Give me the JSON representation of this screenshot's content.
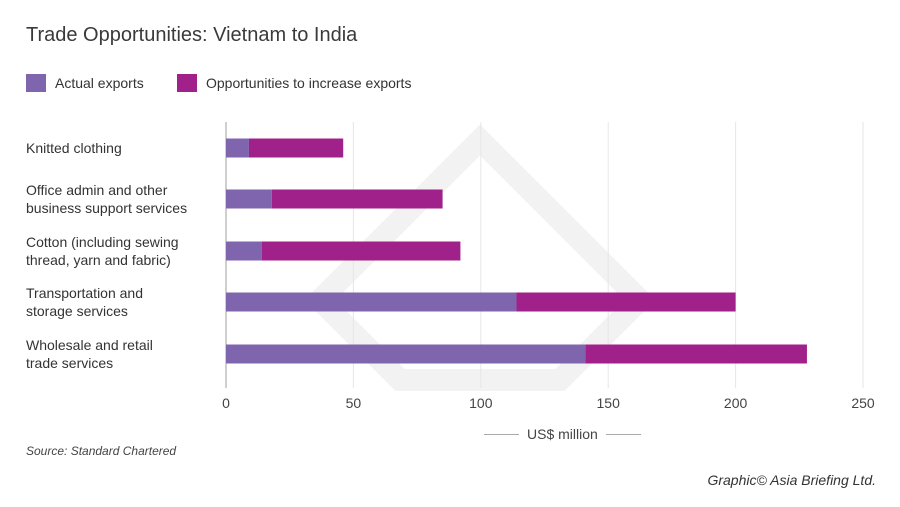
{
  "chart_data": {
    "type": "bar",
    "orientation": "horizontal",
    "stacked": true,
    "title": "Trade Opportunities: Vietnam to India",
    "categories": [
      "Knitted clothing",
      "Office admin and other business support services",
      "Cotton (including sewing thread, yarn and fabric)",
      "Transportation and storage services",
      "Wholesale and retail trade services"
    ],
    "category_lines": [
      [
        "Knitted clothing"
      ],
      [
        "Office admin and other",
        "business support services"
      ],
      [
        "Cotton (including sewing",
        "thread, yarn and fabric)"
      ],
      [
        "Transportation and",
        "storage services"
      ],
      [
        "Wholesale and retail",
        "trade services"
      ]
    ],
    "series": [
      {
        "name": "Actual exports",
        "color": "#7f65ad",
        "values": [
          9,
          18,
          14,
          114,
          141
        ]
      },
      {
        "name": "Opportunities to increase exports",
        "color": "#a1218a",
        "values": [
          37,
          67,
          78,
          86,
          87
        ]
      }
    ],
    "xlabel": "US$ million",
    "xlim": [
      0,
      250
    ],
    "xticks": [
      "0",
      "50",
      "100",
      "150",
      "200",
      "250"
    ],
    "grid": true,
    "legend_position": "top-left"
  },
  "source": "Source: Standard Chartered",
  "credit": "Graphic© Asia Briefing Ltd."
}
